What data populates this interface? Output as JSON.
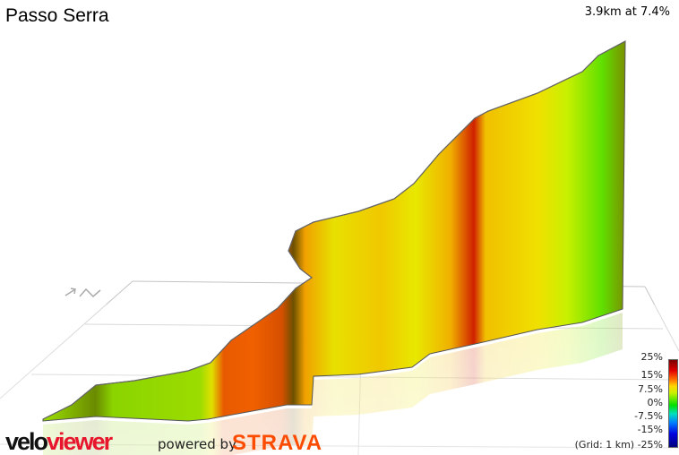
{
  "chart_data": {
    "type": "area",
    "title": "Passo Serra",
    "annotation": "3.9km at 7.4%",
    "colorbar": {
      "ticks": [
        "25%",
        "15%",
        "7.5%",
        "0%",
        "-7.5%",
        "-15%",
        "-25%"
      ],
      "grid_label": "(Grid: 1 km)",
      "colors": [
        "#7a0000",
        "#e00000",
        "#ff6a00",
        "#ffd700",
        "#00e000",
        "#0080ff",
        "#00007a"
      ]
    },
    "grid": true
  },
  "branding": {
    "logo_part1": "velo",
    "logo_part2": "viewer",
    "powered_by": "powered by",
    "strava": "STRAVA",
    "logo_colors": {
      "velo": "#111111",
      "viewer": "#e8162c",
      "strava": "#fc4c02"
    }
  },
  "icons": {
    "north_arrow": "north-arrow-icon",
    "profile": "profile-line-icon"
  }
}
